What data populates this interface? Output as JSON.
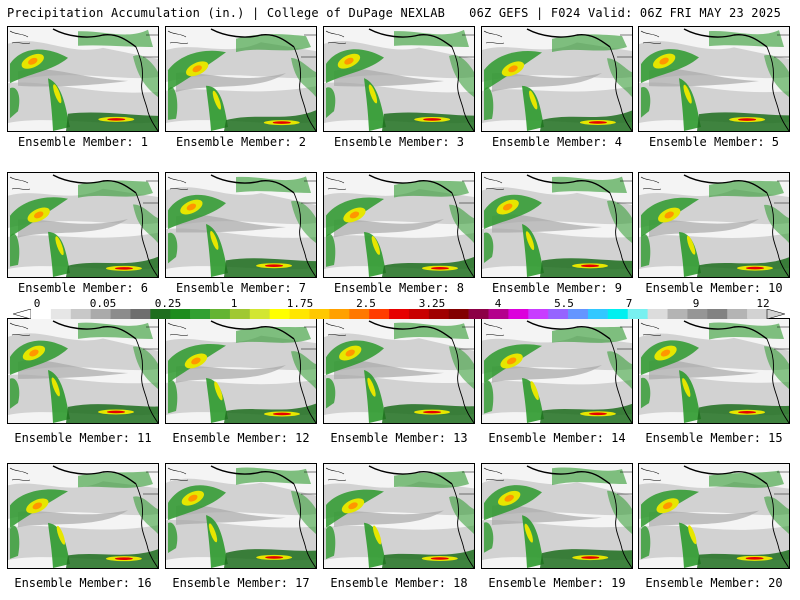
{
  "header": {
    "left_title": "Precipitation Accumulation (in.) | College of DuPage NEXLAB",
    "right_title": "06Z GEFS | F024 Valid: 06Z FRI MAY 23 2025"
  },
  "panels": [
    {
      "label": "Ensemble Member: 1"
    },
    {
      "label": "Ensemble Member: 2"
    },
    {
      "label": "Ensemble Member: 3"
    },
    {
      "label": "Ensemble Member: 4"
    },
    {
      "label": "Ensemble Member: 5"
    },
    {
      "label": "Ensemble Member: 6"
    },
    {
      "label": "Ensemble Member: 7"
    },
    {
      "label": "Ensemble Member: 8"
    },
    {
      "label": "Ensemble Member: 9"
    },
    {
      "label": "Ensemble Member: 10"
    },
    {
      "label": "Ensemble Member: 11"
    },
    {
      "label": "Ensemble Member: 12"
    },
    {
      "label": "Ensemble Member: 13"
    },
    {
      "label": "Ensemble Member: 14"
    },
    {
      "label": "Ensemble Member: 15"
    },
    {
      "label": "Ensemble Member: 16"
    },
    {
      "label": "Ensemble Member: 17"
    },
    {
      "label": "Ensemble Member: 18"
    },
    {
      "label": "Ensemble Member: 19"
    },
    {
      "label": "Ensemble Member: 20"
    }
  ],
  "colorbar": {
    "labels": [
      "0",
      "0.05",
      "0.25",
      "1",
      "1.75",
      "2.5",
      "3.25",
      "4",
      "5.5",
      "7",
      "9",
      "12"
    ],
    "colors": [
      "#ffffff",
      "#e6e6e6",
      "#c8c8c8",
      "#aaaaaa",
      "#8c8c8c",
      "#6e6e6e",
      "#1e6e1e",
      "#1e8c1e",
      "#32a032",
      "#64b432",
      "#a0c832",
      "#d2e632",
      "#ffff00",
      "#ffe600",
      "#ffc800",
      "#ffa000",
      "#ff7800",
      "#ff3c00",
      "#e60000",
      "#c80000",
      "#a00000",
      "#820000",
      "#8c0046",
      "#b4008c",
      "#dc00dc",
      "#c83cff",
      "#9664ff",
      "#6496ff",
      "#32c8ff",
      "#00f0f0",
      "#78f0f0",
      "#dcdcdc",
      "#b4b4b4",
      "#969696",
      "#828282",
      "#b4b4b4",
      "#d2d2d2"
    ]
  },
  "map_colors": {
    "light_gray": "#d2d2d2",
    "mid_gray": "#a8a8a8",
    "green": "#2e9a2e",
    "dark_green": "#1e6e1e",
    "yellow": "#e6e600",
    "orange": "#ff9600",
    "red": "#e60000",
    "coast": "#000000"
  }
}
